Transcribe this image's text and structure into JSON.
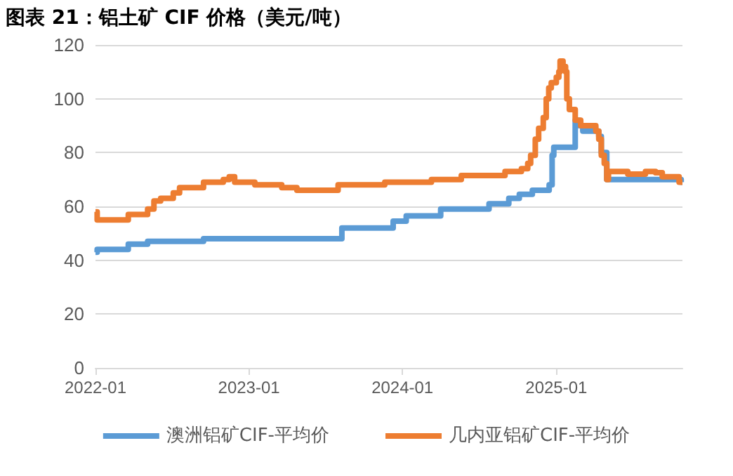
{
  "chart_data": {
    "type": "step",
    "title": "图表 21：铝土矿 CIF 价格（美元/吨）",
    "xlim": [
      "2022-01-01",
      "2025-10-28"
    ],
    "xticks": [
      "2022-01",
      "2023-01",
      "2024-01",
      "2025-01"
    ],
    "ylim": [
      0,
      120
    ],
    "yticks": [
      0,
      20,
      40,
      60,
      80,
      100,
      120
    ],
    "grid": "y",
    "legend": "bottom",
    "marker": "none",
    "line_style": "solid",
    "series": [
      {
        "name": "澳洲铝矿CIF-平均价",
        "color": "#5b9bd5",
        "x": [
          "2022-01-01",
          "2022-01-05",
          "2022-03-20",
          "2022-05-05",
          "2022-09-15",
          "2023-08-10",
          "2023-12-10",
          "2024-01-10",
          "2024-04-01",
          "2024-07-25",
          "2024-09-10",
          "2024-10-05",
          "2024-11-05",
          "2024-12-15",
          "2024-12-22",
          "2024-12-26",
          "2025-02-15",
          "2025-02-25",
          "2025-03-05",
          "2025-04-12",
          "2025-04-18",
          "2025-05-01",
          "2025-10-25",
          "2025-10-28"
        ],
        "values": [
          43,
          44,
          46,
          47,
          48,
          52,
          54.5,
          56.5,
          59,
          61,
          63,
          64.5,
          66,
          68,
          79,
          82,
          92,
          90,
          88,
          86,
          80,
          70,
          69,
          69
        ]
      },
      {
        "name": "几内亚铝矿CIF-平均价",
        "color": "#ed7d31",
        "x": [
          "2022-01-01",
          "2022-01-05",
          "2022-03-20",
          "2022-05-05",
          "2022-05-20",
          "2022-06-05",
          "2022-07-05",
          "2022-07-20",
          "2022-09-15",
          "2022-11-01",
          "2022-11-15",
          "2022-11-28",
          "2023-01-15",
          "2023-03-20",
          "2023-04-25",
          "2023-08-01",
          "2023-11-20",
          "2024-03-10",
          "2024-05-20",
          "2024-09-01",
          "2024-10-10",
          "2024-10-25",
          "2024-11-01",
          "2024-11-12",
          "2024-11-20",
          "2024-12-01",
          "2024-12-08",
          "2024-12-14",
          "2024-12-20",
          "2025-01-01",
          "2025-01-07",
          "2025-01-10",
          "2025-01-17",
          "2025-01-23",
          "2025-01-26",
          "2025-02-01",
          "2025-02-15",
          "2025-02-28",
          "2025-04-05",
          "2025-04-12",
          "2025-04-18",
          "2025-04-25",
          "2025-05-01",
          "2025-05-05",
          "2025-06-20",
          "2025-08-01",
          "2025-08-25",
          "2025-09-10",
          "2025-10-20",
          "2025-10-28"
        ],
        "values": [
          58,
          55,
          57,
          59,
          62,
          63,
          65,
          67,
          69,
          70,
          71,
          69,
          68,
          67,
          66,
          68,
          69,
          70,
          71.5,
          73,
          74,
          76,
          79,
          85,
          89,
          93,
          100,
          104,
          106,
          108,
          110,
          114,
          112,
          110,
          100,
          96,
          92,
          90,
          88,
          85,
          79,
          76,
          70,
          73,
          72,
          73,
          72.5,
          71,
          69,
          69
        ]
      }
    ]
  }
}
